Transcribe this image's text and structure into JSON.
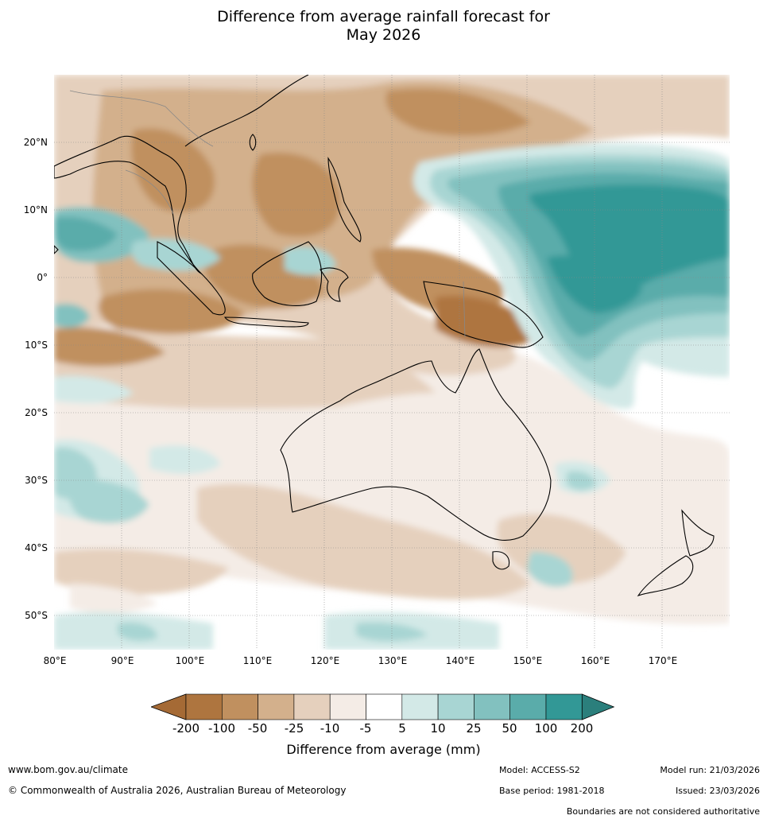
{
  "title_line1": "Difference from average rainfall forecast for",
  "title_line2": "May 2026",
  "lat_ticks": [
    "20°N",
    "10°N",
    "0°",
    "10°S",
    "20°S",
    "30°S",
    "40°S",
    "50°S"
  ],
  "lon_ticks": [
    "80°E",
    "90°E",
    "100°E",
    "110°E",
    "120°E",
    "130°E",
    "140°E",
    "150°E",
    "160°E",
    "170°E"
  ],
  "colorbar": {
    "title": "Difference from average (mm)",
    "labels": [
      "-200",
      "-100",
      "-50",
      "-25",
      "-10",
      "-5",
      "5",
      "10",
      "25",
      "50",
      "100",
      "200"
    ],
    "colors": [
      "#a56a35",
      "#ae753f",
      "#c0905f",
      "#d3b08c",
      "#e5d0bd",
      "#f4ece6",
      "#ffffff",
      "#d3e9e7",
      "#a8d5d3",
      "#82c1bf",
      "#5aacaa",
      "#329896",
      "#2b7f7c"
    ]
  },
  "footer": {
    "url": "www.bom.gov.au/climate",
    "copyright": "© Commonwealth of Australia 2026, Australian Bureau of Meteorology",
    "model": "Model: ACCESS-S2",
    "model_run": "Model run: 21/03/2026",
    "base_period": "Base period: 1981-2018",
    "issued": "Issued: 23/03/2026",
    "disclaimer": "Boundaries are not considered authoritative"
  }
}
